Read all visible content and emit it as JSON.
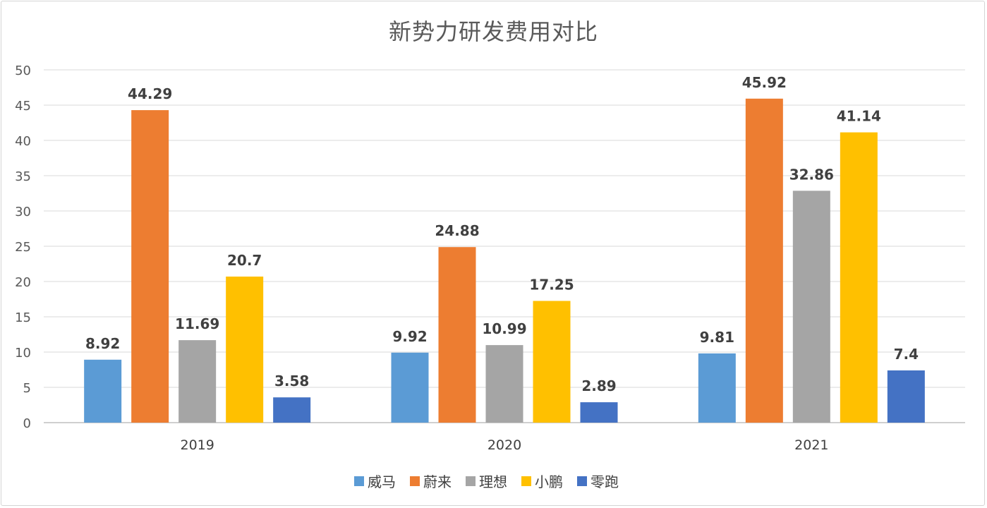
{
  "chart_data": {
    "type": "bar",
    "title": "新势力研发费用对比",
    "xlabel": "",
    "ylabel": "",
    "categories": [
      "2019",
      "2020",
      "2021"
    ],
    "ylim": [
      0,
      50
    ],
    "yticks": [
      0,
      5,
      10,
      15,
      20,
      25,
      30,
      35,
      40,
      45,
      50
    ],
    "grid": true,
    "legend_position": "bottom",
    "series": [
      {
        "name": "威马",
        "color": "#5b9bd5",
        "values": [
          8.92,
          9.92,
          9.81
        ]
      },
      {
        "name": "蔚来",
        "color": "#ed7d31",
        "values": [
          44.29,
          24.88,
          45.92
        ]
      },
      {
        "name": "理想",
        "color": "#a5a5a5",
        "values": [
          11.69,
          10.99,
          32.86
        ]
      },
      {
        "name": "小鹏",
        "color": "#ffc000",
        "values": [
          20.7,
          17.25,
          41.14
        ]
      },
      {
        "name": "零跑",
        "color": "#4472c4",
        "values": [
          3.58,
          2.89,
          7.4
        ]
      }
    ]
  }
}
